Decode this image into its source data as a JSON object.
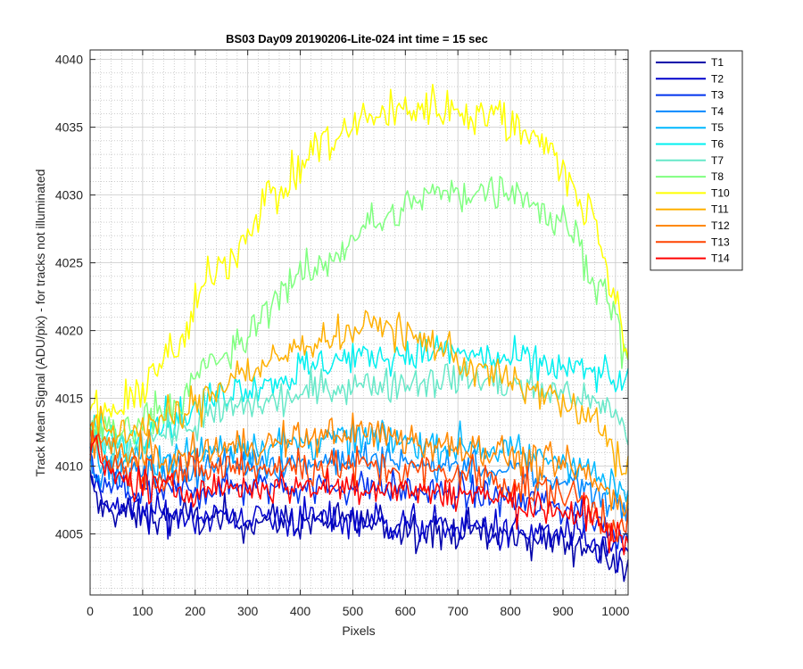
{
  "chart_data": {
    "type": "line",
    "title": "BS03 Day09 20190206-Lite-024 int time = 15 sec",
    "xlabel": "Pixels",
    "ylabel": "Track Mean Signal (ADU/pix) - for tracks not illuminated",
    "xlim": [
      0,
      1024
    ],
    "ylim": [
      4000.5,
      4040.7
    ],
    "xticks": [
      0,
      100,
      200,
      300,
      400,
      500,
      600,
      700,
      800,
      900,
      1000
    ],
    "yticks": [
      4005,
      4010,
      4015,
      4020,
      4025,
      4030,
      4035,
      4040
    ],
    "grid": true,
    "minor_grid": true,
    "legend_position": "outside-right-top",
    "x_step": 4,
    "series": [
      {
        "name": "T1",
        "color": "#0000AA",
        "noise": 1.1,
        "anchors": [
          [
            0,
            4008.5
          ],
          [
            20,
            4007
          ],
          [
            100,
            4006.2
          ],
          [
            300,
            4006
          ],
          [
            500,
            4005.8
          ],
          [
            700,
            4005.2
          ],
          [
            900,
            4004.5
          ],
          [
            1024,
            4003
          ]
        ]
      },
      {
        "name": "T2",
        "color": "#0000CC",
        "noise": 1.1,
        "anchors": [
          [
            0,
            4009
          ],
          [
            20,
            4007.5
          ],
          [
            100,
            4006.5
          ],
          [
            300,
            4006.3
          ],
          [
            500,
            4006
          ],
          [
            700,
            4005.5
          ],
          [
            900,
            4004.8
          ],
          [
            1024,
            4003.5
          ]
        ]
      },
      {
        "name": "T3",
        "color": "#0033EE",
        "noise": 1.0,
        "anchors": [
          [
            0,
            4010
          ],
          [
            20,
            4008.5
          ],
          [
            100,
            4008
          ],
          [
            300,
            4008.5
          ],
          [
            500,
            4008.5
          ],
          [
            700,
            4008
          ],
          [
            900,
            4007
          ],
          [
            1024,
            4005
          ]
        ]
      },
      {
        "name": "T4",
        "color": "#0088FF",
        "noise": 1.0,
        "anchors": [
          [
            0,
            4010.5
          ],
          [
            20,
            4009.5
          ],
          [
            100,
            4009.5
          ],
          [
            300,
            4010.2
          ],
          [
            500,
            4010.5
          ],
          [
            700,
            4010
          ],
          [
            900,
            4009
          ],
          [
            1024,
            4007
          ]
        ]
      },
      {
        "name": "T5",
        "color": "#00B8FF",
        "noise": 1.0,
        "anchors": [
          [
            0,
            4011.5
          ],
          [
            20,
            4010.5
          ],
          [
            100,
            4010.5
          ],
          [
            300,
            4011.5
          ],
          [
            500,
            4012
          ],
          [
            700,
            4011.5
          ],
          [
            900,
            4010.5
          ],
          [
            1024,
            4008
          ]
        ]
      },
      {
        "name": "T6",
        "color": "#00F0F0",
        "noise": 1.1,
        "anchors": [
          [
            0,
            4012.5
          ],
          [
            50,
            4012
          ],
          [
            150,
            4013.5
          ],
          [
            300,
            4016
          ],
          [
            500,
            4018
          ],
          [
            650,
            4018.5
          ],
          [
            800,
            4017.8
          ],
          [
            950,
            4017
          ],
          [
            1024,
            4016
          ]
        ]
      },
      {
        "name": "T7",
        "color": "#66E8C8",
        "noise": 1.0,
        "anchors": [
          [
            0,
            4012
          ],
          [
            50,
            4011.5
          ],
          [
            150,
            4012.5
          ],
          [
            300,
            4014.5
          ],
          [
            500,
            4016
          ],
          [
            700,
            4016.5
          ],
          [
            900,
            4015.5
          ],
          [
            1000,
            4014
          ],
          [
            1024,
            4012
          ]
        ]
      },
      {
        "name": "T8",
        "color": "#80FF80",
        "noise": 1.1,
        "anchors": [
          [
            0,
            4013
          ],
          [
            50,
            4012.5
          ],
          [
            150,
            4014.5
          ],
          [
            250,
            4018
          ],
          [
            400,
            4024
          ],
          [
            550,
            4028
          ],
          [
            650,
            4030
          ],
          [
            800,
            4030.5
          ],
          [
            900,
            4028
          ],
          [
            980,
            4023
          ],
          [
            1024,
            4018
          ]
        ]
      },
      {
        "name": "T10",
        "color": "#FFFF00",
        "noise": 1.2,
        "anchors": [
          [
            0,
            4014
          ],
          [
            50,
            4014
          ],
          [
            150,
            4018
          ],
          [
            250,
            4025
          ],
          [
            350,
            4030
          ],
          [
            450,
            4034
          ],
          [
            550,
            4036
          ],
          [
            650,
            4036.5
          ],
          [
            750,
            4036
          ],
          [
            850,
            4034.5
          ],
          [
            950,
            4029
          ],
          [
            1000,
            4023
          ],
          [
            1024,
            4017
          ]
        ]
      },
      {
        "name": "T11",
        "color": "#FFB000",
        "noise": 1.1,
        "anchors": [
          [
            0,
            4013
          ],
          [
            50,
            4012.5
          ],
          [
            150,
            4013.5
          ],
          [
            300,
            4017
          ],
          [
            450,
            4019.5
          ],
          [
            550,
            4020.5
          ],
          [
            650,
            4019
          ],
          [
            750,
            4017
          ],
          [
            850,
            4015.5
          ],
          [
            950,
            4013.5
          ],
          [
            1024,
            4010
          ]
        ]
      },
      {
        "name": "T12",
        "color": "#FF8800",
        "noise": 1.1,
        "anchors": [
          [
            0,
            4012.5
          ],
          [
            50,
            4011
          ],
          [
            150,
            4010.5
          ],
          [
            300,
            4011.5
          ],
          [
            500,
            4012.5
          ],
          [
            700,
            4011.5
          ],
          [
            900,
            4010
          ],
          [
            1024,
            4007.5
          ]
        ]
      },
      {
        "name": "T13",
        "color": "#FF4400",
        "noise": 1.1,
        "anchors": [
          [
            0,
            4012
          ],
          [
            50,
            4010
          ],
          [
            150,
            4009.5
          ],
          [
            300,
            4010
          ],
          [
            500,
            4010
          ],
          [
            700,
            4009.5
          ],
          [
            900,
            4008
          ],
          [
            1024,
            4005.5
          ]
        ]
      },
      {
        "name": "T14",
        "color": "#FF0000",
        "noise": 1.0,
        "anchors": [
          [
            0,
            4011.5
          ],
          [
            50,
            4009
          ],
          [
            150,
            4008.3
          ],
          [
            300,
            4008.5
          ],
          [
            500,
            4008.5
          ],
          [
            700,
            4008
          ],
          [
            900,
            4006.8
          ],
          [
            1024,
            4004.5
          ]
        ]
      }
    ]
  }
}
